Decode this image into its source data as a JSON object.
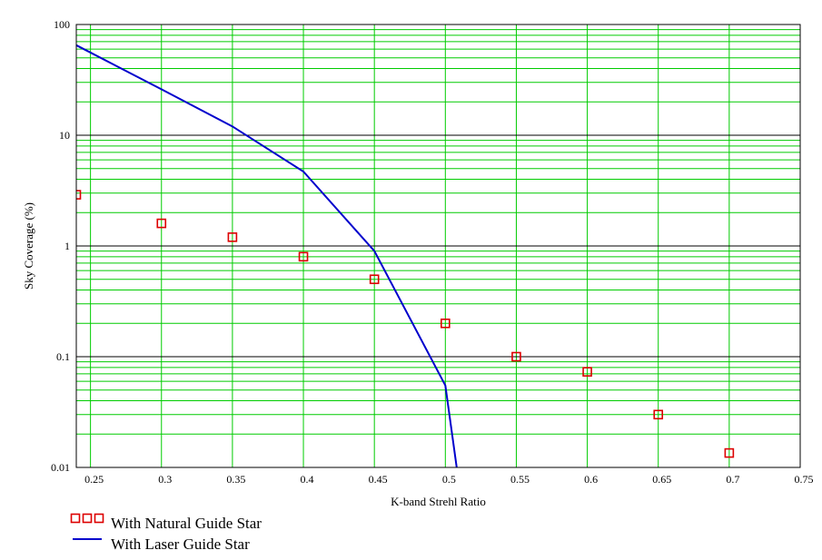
{
  "chart_data": {
    "type": "scatter",
    "title": "",
    "xlabel": "K-band Strehl Ratio",
    "ylabel": "Sky Coverage (%)",
    "xlim": [
      0.24,
      0.75
    ],
    "ylim": [
      0.01,
      100
    ],
    "y_scale": "log",
    "grid": true,
    "legend_position": "bottom-left",
    "x_ticks": [
      "0.25",
      "0.3",
      "0.35",
      "0.4",
      "0.45",
      "0.5",
      "0.55",
      "0.6",
      "0.65",
      "0.7",
      "0.75"
    ],
    "x_tick_values": [
      0.25,
      0.3,
      0.35,
      0.4,
      0.45,
      0.5,
      0.55,
      0.6,
      0.65,
      0.7,
      0.75
    ],
    "y_ticks": [
      "100",
      "10",
      "1",
      "0.1",
      "0.01"
    ],
    "y_tick_values": [
      100,
      10,
      1,
      0.1,
      0.01
    ],
    "series": [
      {
        "name": "With Natural Guide Star",
        "kind": "scatter",
        "marker": "square",
        "color": "#dd0000",
        "x": [
          0.24,
          0.3,
          0.35,
          0.4,
          0.45,
          0.5,
          0.55,
          0.6,
          0.65,
          0.7
        ],
        "y": [
          2.9,
          1.6,
          1.2,
          0.8,
          0.5,
          0.2,
          0.1,
          0.073,
          0.03,
          0.0135
        ]
      },
      {
        "name": "With Laser Guide Star",
        "kind": "line",
        "color": "#0000cc",
        "x": [
          0.24,
          0.3,
          0.35,
          0.4,
          0.45,
          0.5,
          0.508
        ],
        "y": [
          65,
          26,
          12,
          4.7,
          0.9,
          0.055,
          0.01
        ]
      }
    ],
    "colors": {
      "grid_major": "#000000",
      "grid_minor": "#00cc00",
      "background": "#ffffff"
    }
  }
}
